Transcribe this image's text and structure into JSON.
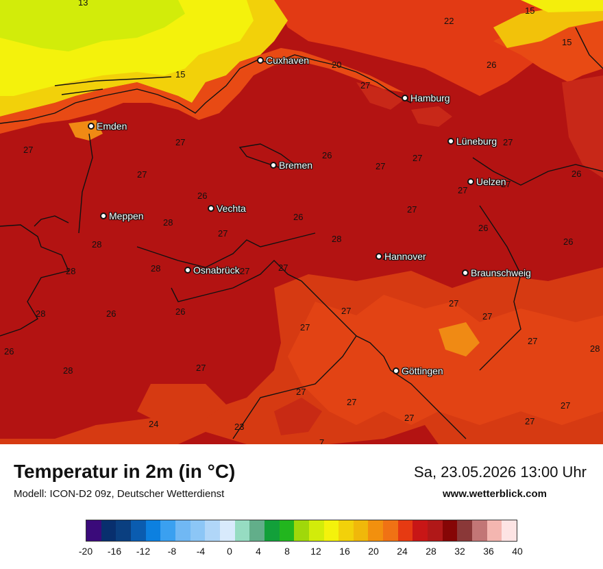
{
  "map": {
    "cities": [
      {
        "name": "Cuxhaven"
      },
      {
        "name": "Hamburg"
      },
      {
        "name": "Emden"
      },
      {
        "name": "Lüneburg"
      },
      {
        "name": "Bremen"
      },
      {
        "name": "Uelzen"
      },
      {
        "name": "Vechta"
      },
      {
        "name": "Meppen"
      },
      {
        "name": "Hannover"
      },
      {
        "name": "Osnabrück"
      },
      {
        "name": "Braunschweig"
      },
      {
        "name": "Göttingen"
      }
    ],
    "temperature_labels": [
      "13",
      "15",
      "22",
      "15",
      "20",
      "26",
      "15",
      "27",
      "27",
      "27",
      "26",
      "27",
      "27",
      "27",
      "27",
      "26",
      "26",
      "27",
      "27",
      "26",
      "27",
      "28",
      "27",
      "26",
      "28",
      "28",
      "26",
      "28",
      "28",
      "27",
      "27",
      "27",
      "27",
      "26",
      "26",
      "27",
      "27",
      "27",
      "28",
      "28",
      "27",
      "26",
      "27",
      "28",
      "24",
      "23",
      "27",
      "27",
      "27",
      "27",
      "27",
      "7"
    ]
  },
  "footer": {
    "title": "Temperatur in 2m (in °C)",
    "model": "Modell: ICON-D2 09z, Deutscher Wetterdienst",
    "datetime": "Sa, 23.05.2026 13:00 Uhr",
    "website": "www.wetterblick.com"
  },
  "legend": {
    "colors": [
      "#3a0a7a",
      "#082f6e",
      "#0a3f80",
      "#0a5cb0",
      "#0c80e0",
      "#3aa0f0",
      "#70b8f4",
      "#8cc6f6",
      "#b0d6f8",
      "#d8eafc",
      "#96dcc2",
      "#62ae8a",
      "#12a03a",
      "#22b61e",
      "#a0d80a",
      "#d2ec0a",
      "#f4f20c",
      "#f2d10a",
      "#f0b80a",
      "#f2900e",
      "#f07214",
      "#e63a12",
      "#c81616",
      "#b01818",
      "#860606",
      "#8a3838",
      "#c27676",
      "#f4b6b0",
      "#fde4e4"
    ],
    "ticks": [
      "-20",
      "-16",
      "-12",
      "-8",
      "-4",
      "0",
      "4",
      "8",
      "12",
      "16",
      "20",
      "24",
      "28",
      "32",
      "36",
      "40"
    ]
  }
}
